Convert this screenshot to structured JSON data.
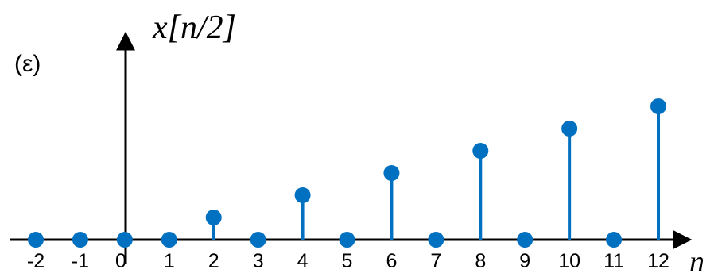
{
  "panel_label": "(ε)",
  "chart_data": {
    "type": "stem",
    "ylabel": "x[n/2]",
    "xlabel": "n",
    "x": [
      -2,
      -1,
      0,
      1,
      2,
      3,
      4,
      5,
      6,
      7,
      8,
      9,
      10,
      11,
      12
    ],
    "y": [
      0,
      0,
      0,
      0,
      1,
      0,
      2,
      0,
      3,
      0,
      4,
      0,
      5,
      0,
      6
    ],
    "xtick_labels": [
      "-2",
      "-1",
      "0",
      "1",
      "2",
      "3",
      "4",
      "5",
      "6",
      "7",
      "8",
      "9",
      "10",
      "11",
      "12"
    ],
    "xlim": [
      -2,
      12
    ],
    "grid": false,
    "marker_color": "#0070C0",
    "axis_color": "#000000"
  }
}
